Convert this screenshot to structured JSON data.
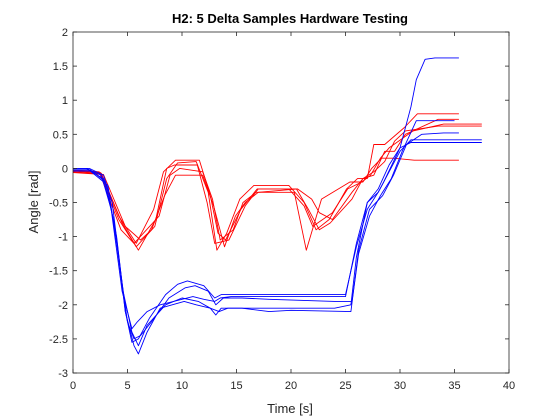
{
  "chart_data": {
    "type": "line",
    "title": "H2: 5 Delta Samples Hardware Testing",
    "xlabel": "Time [s]",
    "ylabel": "Angle [rad]",
    "xlim": [
      0,
      40
    ],
    "ylim": [
      -3,
      2
    ],
    "xticks": [
      "0",
      "5",
      "10",
      "15",
      "20",
      "25",
      "30",
      "35",
      "40"
    ],
    "yticks": [
      "-3",
      "-2.5",
      "-2",
      "-1.5",
      "-1",
      "-0.5",
      "0",
      "0.5",
      "1",
      "1.5",
      "2"
    ],
    "grid": false,
    "colors": {
      "red": "#ff0000",
      "blue": "#0000ff",
      "axis": "#262626"
    },
    "series": [
      {
        "color": "red",
        "x": [
          0,
          2.5,
          4.2,
          5.8,
          7.5,
          8.6,
          9.6,
          11.3,
          12.4,
          13.2,
          14.1,
          15.3,
          16.6,
          19.8,
          21.2,
          22.3,
          23.5,
          25.1,
          26.1,
          27.0,
          27.6,
          28.6,
          30.4,
          31.6,
          35.4
        ],
        "y": [
          -0.03,
          -0.06,
          -0.75,
          -1.15,
          -0.85,
          -0.15,
          0.08,
          0.1,
          -0.35,
          -1.2,
          -0.95,
          -0.45,
          -0.25,
          -0.25,
          -0.5,
          -0.9,
          -0.75,
          -0.3,
          -0.15,
          -0.15,
          0.35,
          0.35,
          0.6,
          0.8,
          0.8
        ]
      },
      {
        "color": "red",
        "x": [
          0,
          2.6,
          4.5,
          6.0,
          7.6,
          8.6,
          9.3,
          11.4,
          12.3,
          13.0,
          14.3,
          15.8,
          17.0,
          19.8,
          21.2,
          22.0,
          23.8,
          25.2,
          26.5,
          27.3,
          28.2,
          29.0,
          31.2,
          34.0,
          37.5
        ],
        "y": [
          -0.05,
          -0.08,
          -0.8,
          -1.2,
          -0.75,
          0.0,
          0.05,
          0.05,
          -0.5,
          -1.1,
          -1.05,
          -0.55,
          -0.3,
          -0.3,
          -0.55,
          -0.85,
          -0.65,
          -0.3,
          -0.2,
          -0.1,
          0.15,
          0.3,
          0.55,
          0.65,
          0.65
        ]
      },
      {
        "color": "red",
        "x": [
          0,
          2.4,
          4.4,
          5.6,
          7.9,
          8.9,
          9.8,
          11.9,
          12.8,
          13.5,
          14.7,
          15.6,
          16.8,
          20.3,
          21.4,
          22.8,
          25.4,
          26.6,
          27.4,
          28.3,
          29.4,
          31.3,
          35.4
        ],
        "y": [
          -0.02,
          -0.05,
          -0.9,
          -1.1,
          -0.7,
          -0.1,
          0.0,
          -0.05,
          -0.45,
          -1.05,
          -0.9,
          -0.5,
          -0.35,
          -0.35,
          -1.2,
          -0.45,
          -0.2,
          -0.2,
          0.0,
          0.15,
          0.15,
          0.12,
          0.12
        ]
      },
      {
        "color": "red",
        "x": [
          0,
          2.8,
          4.8,
          6.2,
          7.2,
          8.4,
          9.4,
          11.9,
          12.9,
          13.9,
          14.9,
          15.8,
          17.0,
          20.6,
          21.9,
          22.6,
          23.8,
          25.6,
          26.6,
          27.6,
          28.6,
          29.5,
          30.5,
          33.5,
          35.4
        ],
        "y": [
          -0.06,
          -0.09,
          -0.85,
          -1.05,
          -0.9,
          -0.4,
          -0.1,
          -0.1,
          -0.55,
          -1.15,
          -0.7,
          -0.5,
          -0.35,
          -0.3,
          -0.45,
          -0.65,
          -0.75,
          -0.35,
          -0.15,
          -0.1,
          0.25,
          0.25,
          0.5,
          0.72,
          0.72
        ]
      },
      {
        "color": "red",
        "x": [
          0,
          2.6,
          4.2,
          5.8,
          7.4,
          8.3,
          9.4,
          11.6,
          12.6,
          13.3,
          14.0,
          15.4,
          16.9,
          20.5,
          21.6,
          22.6,
          23.6,
          25.6,
          26.6,
          27.6,
          28.6,
          29.5,
          30.5,
          33.5,
          37.5
        ],
        "y": [
          -0.04,
          -0.07,
          -0.7,
          -1.1,
          -0.6,
          -0.05,
          0.12,
          0.12,
          -0.4,
          -0.95,
          -1.05,
          -0.6,
          -0.3,
          -0.3,
          -0.6,
          -0.9,
          -0.8,
          -0.45,
          -0.15,
          -0.05,
          0.1,
          0.4,
          0.55,
          0.62,
          0.62
        ]
      },
      {
        "color": "blue",
        "x": [
          0,
          1.5,
          2.8,
          3.6,
          4.6,
          5.4,
          6.0,
          6.8,
          8.5,
          10.0,
          11.5,
          12.6,
          13.4,
          14.2,
          16.0,
          20.0,
          24.0,
          25.5,
          26.0,
          27.0,
          28.0,
          28.5,
          30.0,
          31.0,
          31.5,
          32.3,
          33.2,
          35.4
        ],
        "y": [
          0.0,
          0.0,
          -0.1,
          -0.5,
          -1.8,
          -2.4,
          -2.6,
          -2.3,
          -2.0,
          -1.9,
          -1.95,
          -2.05,
          -2.1,
          -2.05,
          -2.05,
          -2.05,
          -2.05,
          -2.0,
          -1.3,
          -0.5,
          -0.35,
          -0.2,
          0.3,
          0.9,
          1.3,
          1.6,
          1.62,
          1.62
        ]
      },
      {
        "color": "blue",
        "x": [
          0,
          1.6,
          3.0,
          4.0,
          4.8,
          5.6,
          6.0,
          6.8,
          8.0,
          10.2,
          11.3,
          12.6,
          13.1,
          13.6,
          15.5,
          18.0,
          20.0,
          25.5,
          26.2,
          27.2,
          28.4,
          29.4,
          30.6,
          32.0,
          34.0,
          35.4
        ],
        "y": [
          -0.02,
          -0.02,
          -0.2,
          -1.0,
          -2.1,
          -2.6,
          -2.72,
          -2.4,
          -2.05,
          -1.95,
          -2.0,
          -2.05,
          -2.15,
          -2.05,
          -2.05,
          -2.1,
          -2.08,
          -2.1,
          -1.2,
          -0.6,
          -0.4,
          -0.1,
          0.35,
          0.5,
          0.52,
          0.52
        ]
      },
      {
        "color": "blue",
        "x": [
          0,
          1.2,
          2.6,
          3.5,
          4.5,
          5.4,
          5.9,
          6.8,
          8.0,
          10.0,
          11.0,
          12.0,
          13.0,
          13.5,
          14.5,
          18.0,
          25.0,
          26.0,
          27.0,
          28.0,
          29.0,
          30.0,
          31.0,
          35.0,
          37.5
        ],
        "y": [
          0.0,
          0.0,
          -0.1,
          -0.6,
          -1.8,
          -2.35,
          -2.25,
          -2.1,
          -2.0,
          -1.92,
          -1.88,
          -1.92,
          -1.95,
          -1.9,
          -1.88,
          -1.88,
          -1.88,
          -1.1,
          -0.5,
          -0.3,
          0.05,
          0.3,
          0.38,
          0.38,
          0.38
        ]
      },
      {
        "color": "blue",
        "x": [
          0,
          1.4,
          2.8,
          3.8,
          4.8,
          5.4,
          6.0,
          7.0,
          8.5,
          9.6,
          10.5,
          12.0,
          13.0,
          13.6,
          15.0,
          18.0,
          25.0,
          26.0,
          27.0,
          28.0,
          29.0,
          30.0,
          31.0,
          35.0,
          37.5
        ],
        "y": [
          -0.02,
          -0.02,
          -0.15,
          -0.8,
          -2.1,
          -2.55,
          -2.5,
          -2.2,
          -1.85,
          -1.7,
          -1.65,
          -1.72,
          -1.9,
          -1.85,
          -1.85,
          -1.85,
          -1.85,
          -1.15,
          -0.6,
          -0.35,
          -0.05,
          0.25,
          0.42,
          0.42,
          0.42
        ]
      },
      {
        "color": "blue",
        "x": [
          0,
          1.6,
          3.2,
          4.0,
          5.0,
          5.6,
          6.2,
          7.2,
          8.8,
          10.3,
          11.2,
          12.4,
          13.1,
          13.8,
          15.5,
          18.0,
          24.0,
          25.6,
          26.2,
          27.2,
          28.2,
          29.2,
          30.2,
          31.5,
          35.0
        ],
        "y": [
          -0.04,
          -0.04,
          -0.25,
          -1.1,
          -2.25,
          -2.5,
          -2.45,
          -2.25,
          -1.9,
          -1.75,
          -1.72,
          -1.8,
          -2.0,
          -1.9,
          -1.9,
          -1.92,
          -1.95,
          -1.95,
          -1.25,
          -0.7,
          -0.4,
          -0.15,
          0.25,
          0.7,
          0.7
        ]
      }
    ]
  }
}
